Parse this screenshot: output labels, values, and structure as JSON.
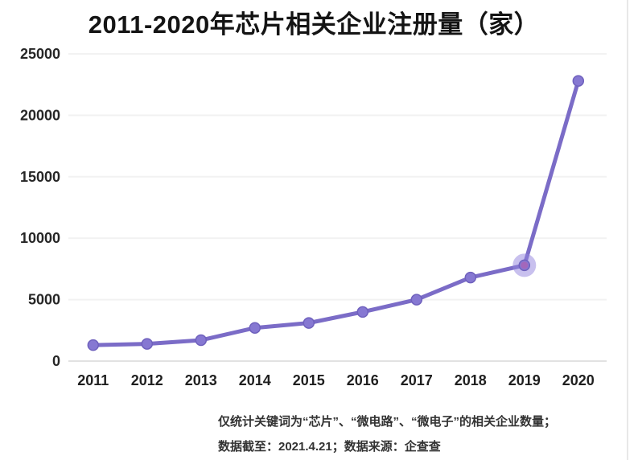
{
  "title": "2011-2020年芯片相关企业注册量（家）",
  "footnote": {
    "line1": "仅统计关键词为“芯片”、“微电路”、“微电子”的相关企业数量；",
    "line2": "数据截至：2021.4.21；数据来源：企查查"
  },
  "colors": {
    "line": "#7b6cc7",
    "dot_fill": "#8678d2",
    "dot_stroke": "#6f61bd",
    "highlight_outer": "rgba(146,130,222,0.5)",
    "highlight_core": "rgba(183,92,172,0.6)",
    "gridline": "#f2f2f2",
    "axis_line": "#e2e2e2",
    "tick_text": "#262626"
  },
  "chart_data": {
    "type": "line",
    "title": "2011-2020年芯片相关企业注册量（家）",
    "series_name": "芯片相关企业注册量（家）",
    "categories": [
      "2011",
      "2012",
      "2013",
      "2014",
      "2015",
      "2016",
      "2017",
      "2018",
      "2019",
      "2020"
    ],
    "values": [
      1300,
      1400,
      1700,
      2700,
      3100,
      4000,
      5000,
      6800,
      7800,
      22800
    ],
    "ylim": [
      0,
      25000
    ],
    "yticks": [
      0,
      5000,
      10000,
      15000,
      20000,
      25000
    ],
    "xlabel": "",
    "ylabel": "",
    "grid": true,
    "legend": false,
    "highlighted_category": "2019"
  }
}
